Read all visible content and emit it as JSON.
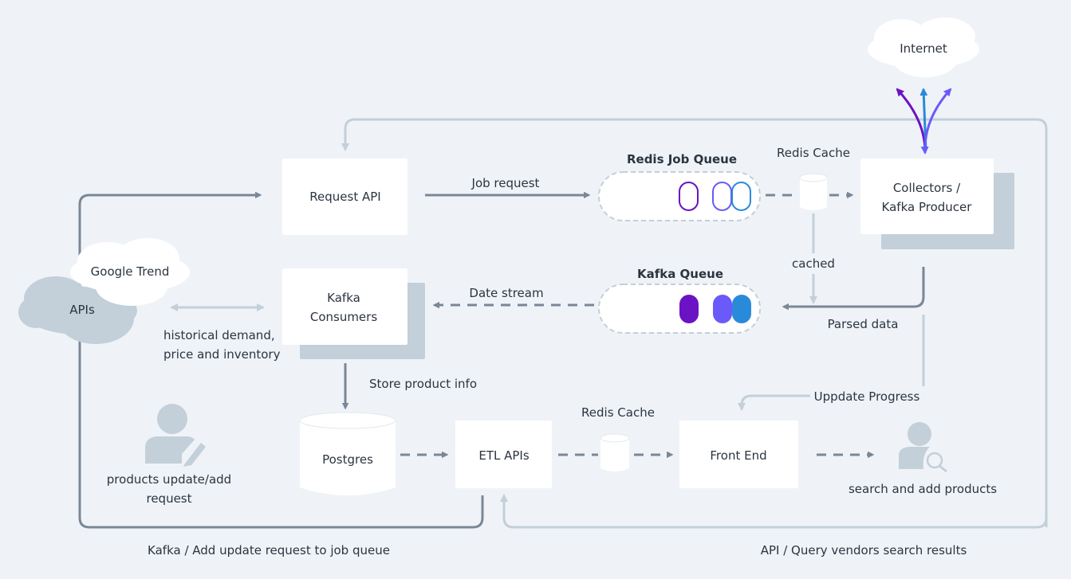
{
  "colors": {
    "background": "#eff3f7",
    "dark_line": "#7a8797",
    "light_line": "#c3cfd9",
    "purple": "#6b12c4",
    "violet": "#6a5af9",
    "blue": "#2a8ada"
  },
  "nodes": {
    "internet": "Internet",
    "request_api": "Request API",
    "redis_job_queue": "Redis Job Queue",
    "redis_cache_top": "Redis Cache",
    "collectors_line1": "Collectors /",
    "collectors_line2": "Kafka Producer",
    "google_trend": "Google Trend",
    "apis": "APIs",
    "kafka_consumers_line1": "Kafka",
    "kafka_consumers_line2": "Consumers",
    "kafka_queue": "Kafka Queue",
    "postgres": "Postgres",
    "etl_apis": "ETL APIs",
    "redis_cache_bottom": "Redis Cache",
    "front_end": "Front End"
  },
  "edges": {
    "job_request": "Job request",
    "cached": "cached",
    "parsed_data": "Parsed data",
    "date_stream": "Date stream",
    "historical_line1": "historical demand,",
    "historical_line2": "price and inventory",
    "store_product_info": "Store product info",
    "update_progress": "Uppdate Progress",
    "kafka_add_update": "Kafka / Add update request to job queue",
    "api_query": "API / Query vendors search results"
  },
  "actors": {
    "products_line1": "products update/add",
    "products_line2": "request",
    "search_add": "search and add products"
  },
  "icons": {
    "editor_user": "user-edit-icon",
    "search_user": "user-search-icon"
  }
}
